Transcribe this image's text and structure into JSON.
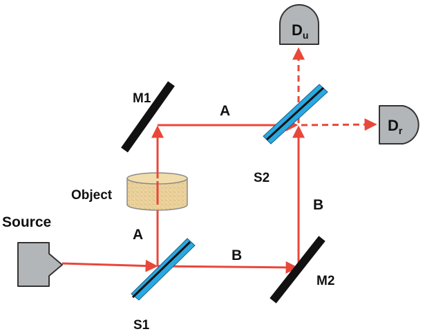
{
  "labels": {
    "source": "Source",
    "object": "Object",
    "s1": "S1",
    "s2": "S2",
    "m1": "M1",
    "m2": "M2",
    "path_a_upper": "A",
    "path_a_lower": "A",
    "path_b_lower": "B",
    "path_b_right": "B"
  },
  "detectors": {
    "upper": {
      "main": "D",
      "sub": "u"
    },
    "right": {
      "main": "D",
      "sub": "r"
    }
  },
  "colors": {
    "beam": "#e8473a",
    "mirror": "#111111",
    "splitter_fill": "#2aa8e0",
    "detector_fill": "#b3b6b8",
    "source_fill": "#b3b6b8",
    "object_fill": "#ecd39e"
  }
}
